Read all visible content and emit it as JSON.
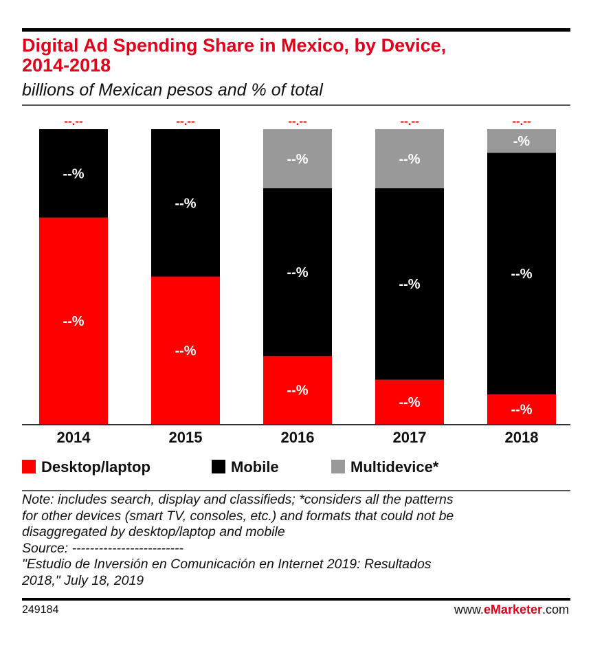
{
  "title_line1": "Digital Ad Spending Share in Mexico, by Device,",
  "title_line2": "2014-2018",
  "subtitle": "billions of Mexican pesos and % of total",
  "chart_data": {
    "type": "bar",
    "stacked": true,
    "categories": [
      "2014",
      "2015",
      "2016",
      "2017",
      "2018"
    ],
    "series": [
      {
        "name": "Desktop/laptop",
        "color": "#ff0000",
        "values": [
          70,
          50,
          23,
          15,
          10
        ],
        "labels": [
          "--%",
          "--%",
          "--%",
          "--%",
          "--%"
        ]
      },
      {
        "name": "Mobile",
        "color": "#000000",
        "values": [
          30,
          50,
          57,
          65,
          82
        ],
        "labels": [
          "--%",
          "--%",
          "--%",
          "--%",
          "--%"
        ]
      },
      {
        "name": "Multidevice*",
        "color": "#999999",
        "values": [
          0,
          0,
          20,
          20,
          8
        ],
        "labels": [
          "",
          "",
          "--%",
          "--%",
          "-%"
        ]
      }
    ],
    "totals": [
      100,
      100,
      100,
      100,
      100
    ],
    "total_labels": [
      "--.--",
      "--.--",
      "--.--",
      "--.--",
      "--.--"
    ],
    "total_label_color": "#ff0000",
    "ylim": [
      0,
      100
    ],
    "grid": false,
    "legend_position": "bottom"
  },
  "legend": [
    {
      "label": "Desktop/laptop",
      "color": "#ff0000"
    },
    {
      "label": "Mobile",
      "color": "#000000"
    },
    {
      "label": "Multidevice*",
      "color": "#999999"
    }
  ],
  "note_lines": [
    "Note: includes search, display and classifieds; *considers all the patterns",
    "for other devices (smart TV, consoles, etc.) and formats that could not be",
    "disaggregated by desktop/laptop and mobile",
    "Source: -------------------------",
    "\"Estudio de Inversión en Comunicación en Internet 2019: Resultados",
    "2018,\" July 18, 2019"
  ],
  "footer": {
    "id": "249184",
    "brand_prefix": "www.",
    "brand_bold": "eMarketer",
    "brand_suffix": ".com"
  },
  "accent_color": "#e2001a"
}
